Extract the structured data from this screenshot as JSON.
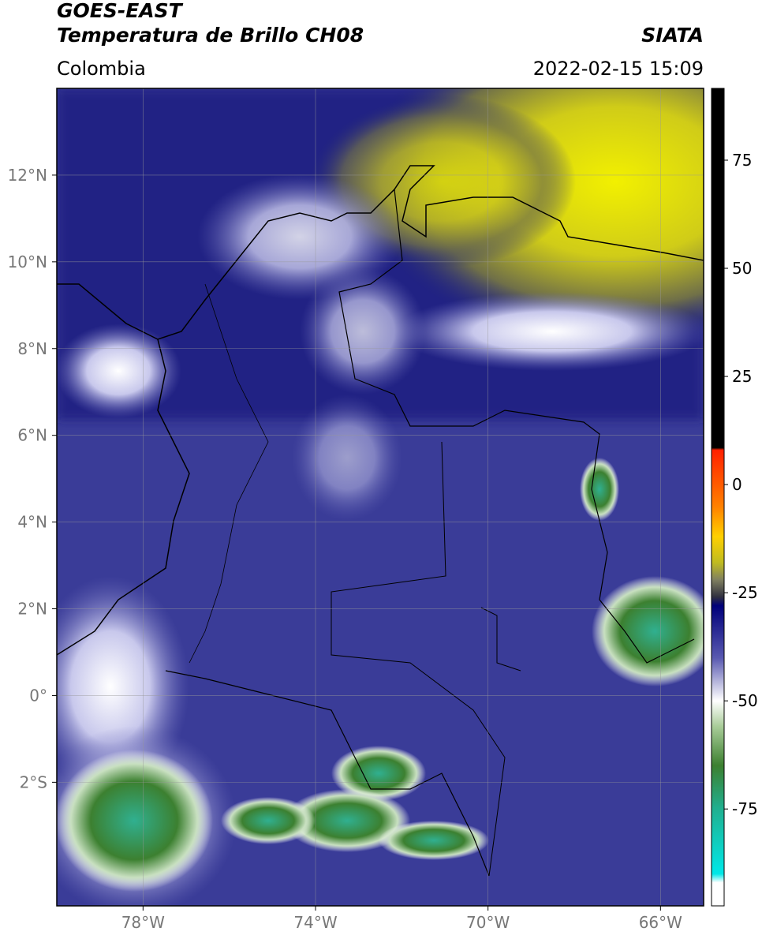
{
  "header": {
    "line1": "GOES-EAST",
    "line2": "Temperatura de Brillo CH08",
    "source": "SIATA",
    "region": "Colombia",
    "timestamp": "2022-02-15 15:09"
  },
  "map": {
    "xlim": [
      -80,
      -65
    ],
    "ylim": [
      -4.85,
      14
    ],
    "xticks": [
      {
        "value": -78,
        "label": "78°W"
      },
      {
        "value": -74,
        "label": "74°W"
      },
      {
        "value": -70,
        "label": "70°W"
      },
      {
        "value": -66,
        "label": "66°W"
      }
    ],
    "yticks": [
      {
        "value": 12,
        "label": "12°N"
      },
      {
        "value": 10,
        "label": "10°N"
      },
      {
        "value": 8,
        "label": "8°N"
      },
      {
        "value": 6,
        "label": "6°N"
      },
      {
        "value": 4,
        "label": "4°N"
      },
      {
        "value": 2,
        "label": "2°N"
      },
      {
        "value": 0,
        "label": "0°"
      },
      {
        "value": -2,
        "label": "2°S"
      }
    ],
    "grid": true
  },
  "colorbar": {
    "clim": [
      -97.4,
      91.6
    ],
    "ticks": [
      75,
      50,
      25,
      0,
      -25,
      -50,
      -75
    ],
    "colormap": [
      {
        "value": 91.6,
        "color": "#000000"
      },
      {
        "value": 8.5,
        "color": "#000000"
      },
      {
        "value": 8,
        "color": "#ff2000"
      },
      {
        "value": -5,
        "color": "#ff8000"
      },
      {
        "value": -12,
        "color": "#ffd000"
      },
      {
        "value": -18,
        "color": "#c0bc20"
      },
      {
        "value": -22,
        "color": "#808060"
      },
      {
        "value": -26,
        "color": "#303040"
      },
      {
        "value": -28,
        "color": "#00007a"
      },
      {
        "value": -40,
        "color": "#5858b0"
      },
      {
        "value": -50,
        "color": "#ffffff"
      },
      {
        "value": -56,
        "color": "#a8cc98"
      },
      {
        "value": -65,
        "color": "#3c8030"
      },
      {
        "value": -75,
        "color": "#20b090"
      },
      {
        "value": -90,
        "color": "#00e8e8"
      },
      {
        "value": -92,
        "color": "#ffffff"
      },
      {
        "value": -97.4,
        "color": "#ffffff"
      }
    ]
  }
}
